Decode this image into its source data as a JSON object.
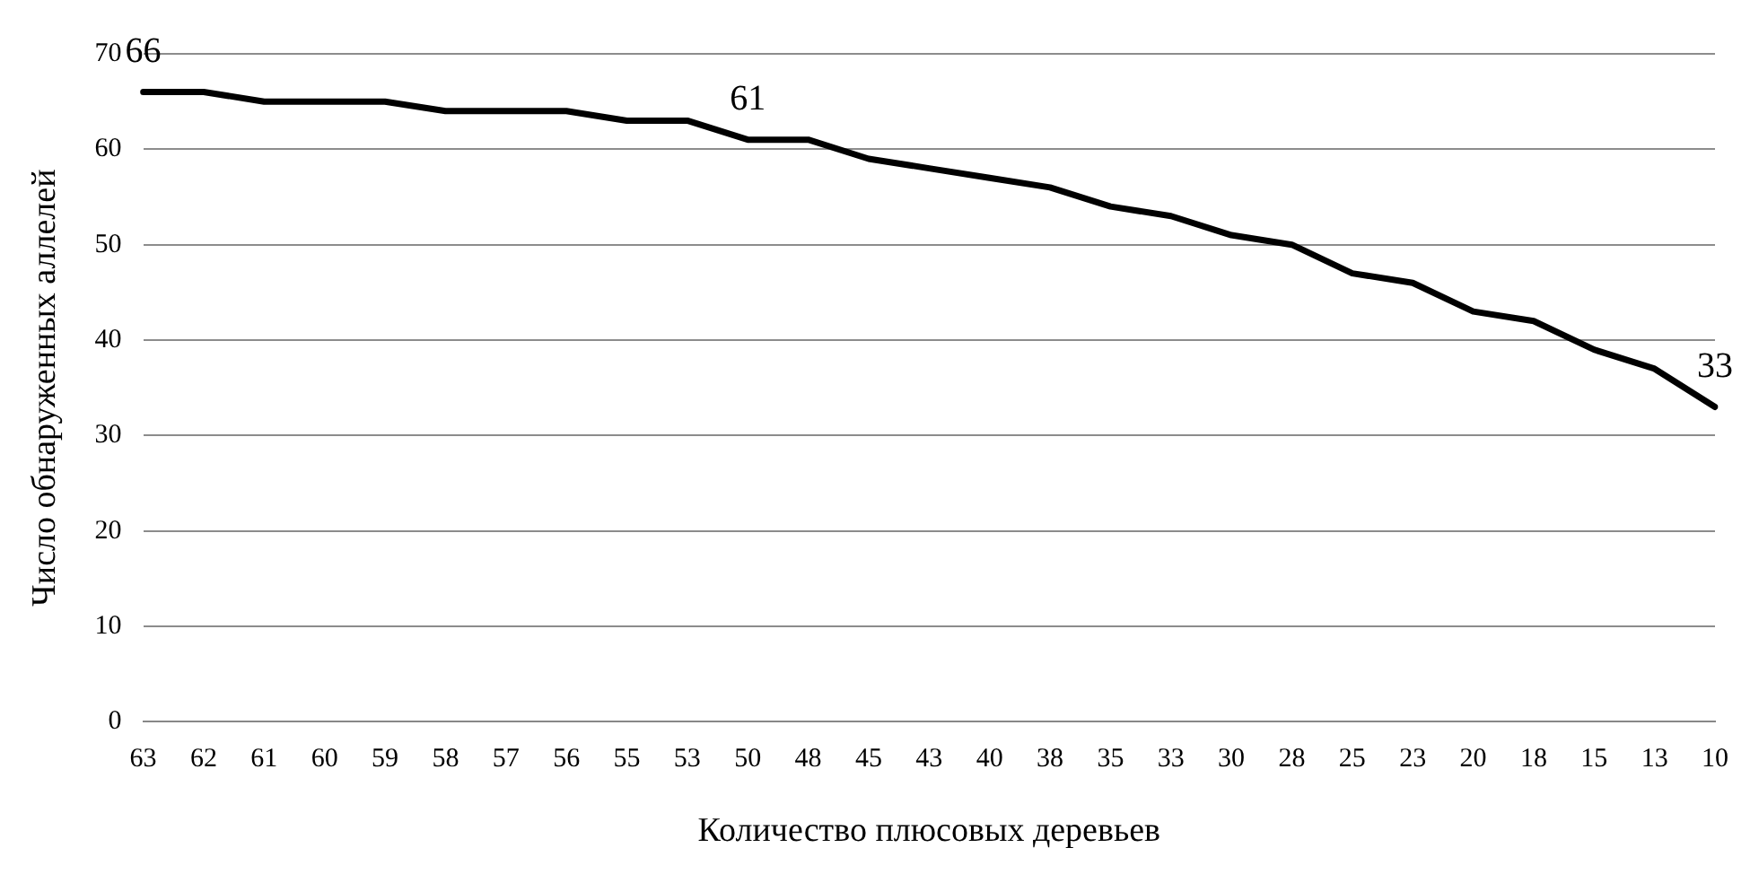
{
  "chart_data": {
    "type": "line",
    "xlabel": "Количество плюсовых деревьев",
    "ylabel": "Число обнаруженных аллелей",
    "categories": [
      "63",
      "62",
      "61",
      "60",
      "59",
      "58",
      "57",
      "56",
      "55",
      "53",
      "50",
      "48",
      "45",
      "43",
      "40",
      "38",
      "35",
      "33",
      "30",
      "28",
      "25",
      "23",
      "20",
      "18",
      "15",
      "13",
      "10"
    ],
    "series": [
      {
        "color": "#000000",
        "values": [
          66,
          66,
          65,
          65,
          65,
          64,
          64,
          64,
          63,
          63,
          61,
          61,
          59,
          58,
          57,
          56,
          54,
          53,
          51,
          50,
          47,
          46,
          43,
          42,
          39,
          37,
          33
        ],
        "value_labels": [
          "66",
          null,
          null,
          null,
          null,
          null,
          null,
          null,
          null,
          null,
          "61",
          null,
          null,
          null,
          null,
          null,
          null,
          null,
          null,
          null,
          null,
          null,
          null,
          null,
          null,
          null,
          "33"
        ]
      }
    ],
    "ylim": [
      0,
      70
    ],
    "yticks": [
      0,
      10,
      20,
      30,
      40,
      50,
      60,
      70
    ],
    "grid": "y",
    "legend": false,
    "marker": "none",
    "line_style": "solid"
  }
}
